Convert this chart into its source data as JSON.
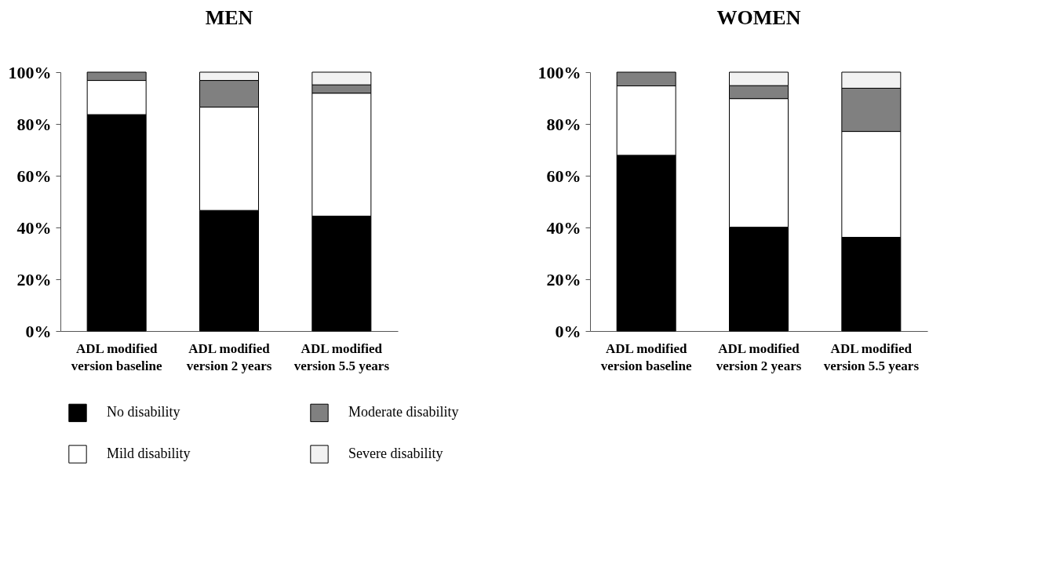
{
  "chart_data": [
    {
      "type": "bar",
      "title": "MEN",
      "stacked": true,
      "categories": [
        "ADL modified\nversion baseline",
        "ADL modified\nversion 2 years",
        "ADL modified\nversion 5.5 years"
      ],
      "series": [
        {
          "name": "No disability",
          "color": "#000000",
          "values": [
            83.6,
            46.6,
            44.4
          ]
        },
        {
          "name": "Mild disability",
          "color": "#ffffff",
          "values": [
            13.2,
            39.9,
            47.5
          ]
        },
        {
          "name": "Moderate disability",
          "color": "#808080",
          "values": [
            3.2,
            10.3,
            3.2
          ]
        },
        {
          "name": "Severe disability",
          "color": "#f2f2f2",
          "values": [
            null,
            3.2,
            4.9
          ]
        }
      ],
      "ylim": [
        0,
        100
      ],
      "yticks": [
        {
          "value": 0,
          "label": "0%"
        },
        {
          "value": 20,
          "label": "20%"
        },
        {
          "value": 40,
          "label": "40%"
        },
        {
          "value": 60,
          "label": "60%"
        },
        {
          "value": 80,
          "label": "80%"
        },
        {
          "value": 100,
          "label": "100%"
        }
      ],
      "grid": false,
      "legend": "bottom"
    },
    {
      "type": "bar",
      "title": "WOMEN",
      "stacked": true,
      "categories": [
        "ADL modified\nversion baseline",
        "ADL modified\nversion 2 years",
        "ADL modified\nversion 5.5 years"
      ],
      "series": [
        {
          "color": "#000000",
          "values": [
            67.9,
            40.1,
            36.2
          ]
        },
        {
          "color": "#ffffff",
          "values": [
            26.8,
            49.7,
            40.9
          ]
        },
        {
          "color": "#808080",
          "values": [
            5.3,
            5.0,
            16.7
          ]
        },
        {
          "color": "#f2f2f2",
          "values": [
            null,
            5.2,
            6.2
          ]
        }
      ],
      "ylim": [
        0,
        100
      ],
      "yticks": [
        {
          "value": 0,
          "label": "0%"
        },
        {
          "value": 20,
          "label": "20%"
        },
        {
          "value": 40,
          "label": "40%"
        },
        {
          "value": 60,
          "label": "60%"
        },
        {
          "value": 80,
          "label": "80%"
        },
        {
          "value": 100,
          "label": "100%"
        }
      ],
      "grid": false,
      "legend": false
    }
  ]
}
